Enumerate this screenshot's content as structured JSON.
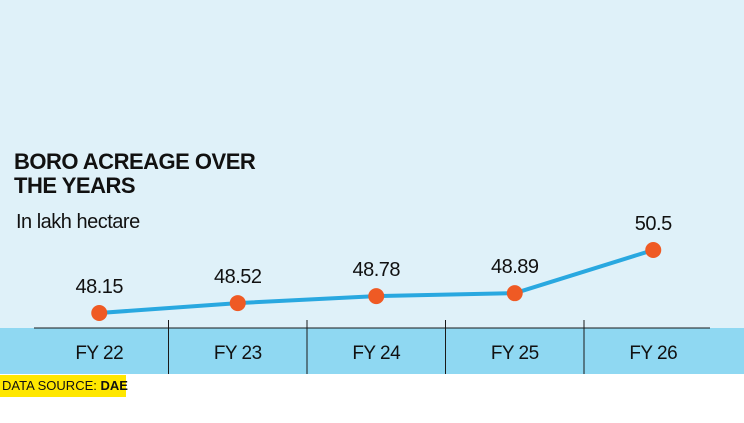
{
  "title_lines": [
    "BORO ACREAGE OVER",
    "THE YEARS"
  ],
  "subtitle": "In lakh hectare",
  "source_label": "DATA SOURCE:",
  "source_name": "DAE",
  "colors": {
    "background": "#dff1f9",
    "axis_band": "#8fd8f2",
    "line": "#29a8e0",
    "marker": "#ef5a24",
    "source_bg": "#ffe700"
  },
  "chart_data": {
    "type": "line",
    "title": "BORO ACREAGE OVER THE YEARS",
    "subtitle": "In lakh hectare",
    "categories": [
      "FY 22",
      "FY 23",
      "FY 24",
      "FY 25",
      "FY 26"
    ],
    "values": [
      48.15,
      48.52,
      48.78,
      48.89,
      50.5
    ],
    "data_labels": [
      "48.15",
      "48.52",
      "48.78",
      "48.89",
      "50.5"
    ],
    "grid": false,
    "legend": "none"
  }
}
